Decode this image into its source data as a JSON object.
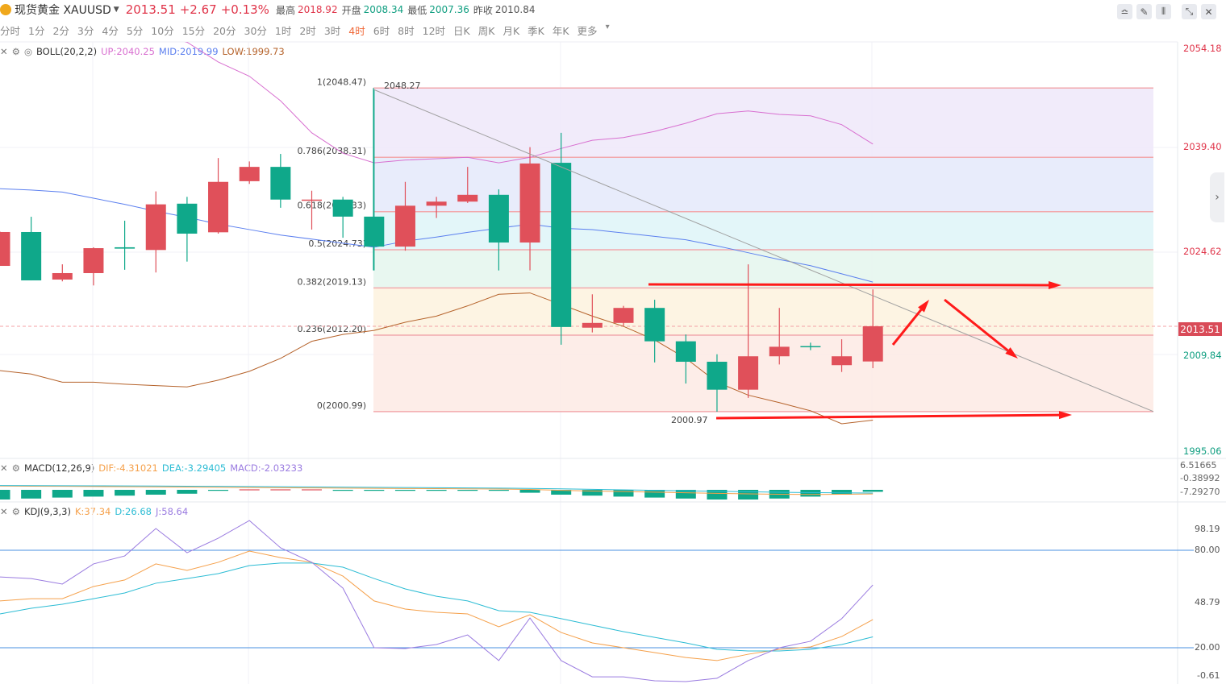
{
  "header": {
    "symbol": "现货黄金 XAUUSD",
    "price": "2013.51",
    "change": "+2.67",
    "change_pct": "+0.13%",
    "high_label": "最高",
    "high": "2018.92",
    "open_label": "开盘",
    "open": "2008.34",
    "low_label": "最低",
    "low": "2007.36",
    "prev_close_label": "昨收",
    "prev_close": "2010.84"
  },
  "toolbar": {
    "icons": [
      "indicator-icon",
      "draw-pencil-icon",
      "candlestick-type-icon",
      "shrink-icon",
      "close-icon"
    ]
  },
  "timeframes": [
    "分时",
    "1分",
    "2分",
    "3分",
    "4分",
    "5分",
    "10分",
    "15分",
    "20分",
    "30分",
    "1时",
    "2时",
    "3时",
    "4时",
    "6时",
    "8时",
    "12时",
    "日K",
    "周K",
    "月K",
    "季K",
    "年K",
    "更多"
  ],
  "active_timeframe": "4时",
  "boll": {
    "name": "BOLL(20,2,2)",
    "up": "UP:2040.25",
    "mid": "MID:2019.99",
    "low": "LOW:1999.73"
  },
  "macd_ind": {
    "name": "MACD(12,26,9)",
    "dif": "DIF:-4.31021",
    "dea": "DEA:-3.29405",
    "macd": "MACD:-2.03233"
  },
  "kdj_ind": {
    "name": "KDJ(9,3,3)",
    "k": "K:37.34",
    "d": "D:26.68",
    "j": "J:58.64"
  },
  "price_axis": [
    "2054.18",
    "2039.40",
    "2024.62",
    "2009.84",
    "1995.06"
  ],
  "current_price_badge": "2013.51",
  "macd_axis": [
    "6.51665",
    "-0.38992",
    "-7.29270"
  ],
  "kdj_axis": [
    "98.19",
    "80.00",
    "48.79",
    "20.00",
    "-0.61"
  ],
  "colors": {
    "up": "#e0505a",
    "down": "#0fa88a",
    "boll_up": "#d86fd0",
    "boll_mid": "#5b7fef",
    "boll_low": "#b5622a",
    "k": "#f5a04a",
    "d": "#2cbcd4",
    "j": "#9a7be0",
    "annotation": "#ff1a1a"
  },
  "chart_data": [
    {
      "type": "candlestick",
      "title": "",
      "ylim": [
        1995.06,
        2054.18
      ],
      "candles": [
        [
          2022.37,
          2027.4,
          2022.37,
          2027.34
        ],
        [
          2027.34,
          2029.58,
          2020.24,
          2020.24
        ],
        [
          2020.36,
          2022.6,
          2020.1,
          2021.31
        ],
        [
          2021.31,
          2025.1,
          2019.5,
          2024.97
        ],
        [
          2025.1,
          2029.0,
          2021.8,
          2024.9
        ],
        [
          2024.7,
          2033.3,
          2021.4,
          2031.4
        ],
        [
          2031.5,
          2032.5,
          2023.0,
          2027.1
        ],
        [
          2027.3,
          2038.2,
          2027.1,
          2034.7
        ],
        [
          2034.8,
          2037.7,
          2034.4,
          2036.9
        ],
        [
          2036.9,
          2038.8,
          2030.9,
          2032.1
        ],
        [
          2032.0,
          2033.4,
          2027.7,
          2032.1
        ],
        [
          2032.1,
          2032.5,
          2026.5,
          2029.6
        ],
        [
          2029.6,
          2048.27,
          2021.7,
          2025.2
        ],
        [
          2025.2,
          2034.7,
          2024.6,
          2031.2
        ],
        [
          2031.2,
          2032.5,
          2029.4,
          2031.8
        ],
        [
          2031.8,
          2036.9,
          2031.6,
          2032.8
        ],
        [
          2032.8,
          2033.6,
          2021.7,
          2025.8
        ],
        [
          2025.8,
          2039.8,
          2021.7,
          2037.4
        ],
        [
          2037.5,
          2041.9,
          2010.8,
          2013.4
        ],
        [
          2013.3,
          2018.2,
          2012.6,
          2014.0
        ],
        [
          2014.0,
          2016.5,
          2013.5,
          2016.2
        ],
        [
          2016.2,
          2017.4,
          2008.2,
          2011.3
        ],
        [
          2011.3,
          2012.3,
          2005.1,
          2008.3
        ],
        [
          2008.3,
          2009.4,
          2000.97,
          2004.2
        ],
        [
          2004.2,
          2022.6,
          2003.0,
          2009.1
        ],
        [
          2009.1,
          2016.2,
          2007.9,
          2010.5
        ],
        [
          2010.6,
          2011.1,
          2010.0,
          2010.5
        ],
        [
          2007.8,
          2011.6,
          2006.8,
          2009.1
        ],
        [
          2008.34,
          2018.92,
          2007.36,
          2013.51
        ]
      ],
      "candle_fields": [
        "open",
        "high",
        "low",
        "close"
      ],
      "boll_up": [
        null,
        null,
        null,
        null,
        null,
        2056.5,
        2055.2,
        2052.3,
        2050.2,
        2046.6,
        2041.9,
        2038.9,
        2037.5,
        2037.9,
        2038.1,
        2038.3,
        2037.5,
        2038.3,
        2039.6,
        2040.8,
        2041.2,
        2042.1,
        2043.3,
        2044.7,
        2045.1,
        2044.6,
        2044.4,
        2043.1,
        2040.25
      ],
      "boll_mid": [
        2033.7,
        2033.5,
        2033.2,
        2032.3,
        2031.4,
        2030.4,
        2029.5,
        2028.5,
        2027.7,
        2026.9,
        2026.3,
        2025.7,
        2025.1,
        2026.0,
        2026.6,
        2027.3,
        2027.9,
        2028.5,
        2027.9,
        2027.7,
        2027.2,
        2026.7,
        2026.2,
        2025.3,
        2024.3,
        2023.3,
        2022.4,
        2021.2,
        2019.99
      ],
      "boll_low": [
        2007.0,
        2006.5,
        2005.3,
        2005.3,
        2005.0,
        2004.8,
        2004.6,
        2005.6,
        2006.9,
        2008.8,
        2011.3,
        2012.3,
        2012.9,
        2014.1,
        2015.0,
        2016.5,
        2018.2,
        2018.4,
        2016.7,
        2015.0,
        2013.5,
        2011.5,
        2008.8,
        2005.3,
        2003.4,
        2002.3,
        2001.1,
        1999.2,
        1999.73
      ],
      "fibonacci": [
        {
          "label": "1(2048.47)",
          "value": 2048.47
        },
        {
          "label": "0.786(2038.31)",
          "value": 2038.31
        },
        {
          "label": "0.618(2030.33)",
          "value": 2030.33
        },
        {
          "label": "0.5(2024.73)",
          "value": 2024.73
        },
        {
          "label": "0.382(2019.13)",
          "value": 2019.13
        },
        {
          "label": "0.236(2012.20)",
          "value": 2012.2
        },
        {
          "label": "0(2000.99)",
          "value": 2000.99
        }
      ],
      "high_marker": "2048.27",
      "low_marker": "2000.97"
    },
    {
      "type": "bar",
      "title": "",
      "macd_hist": [
        -10,
        -9,
        -8,
        -7,
        -6,
        -5,
        -4,
        -1,
        0.5,
        0.5,
        0.5,
        -0.5,
        -0.8,
        -0.8,
        -0.8,
        -0.8,
        -0.8,
        -3,
        -5,
        -6,
        -7,
        -8,
        -9,
        -10,
        -10,
        -9,
        -7,
        -5,
        -2.03
      ],
      "dif": [
        4,
        3.8,
        3.6,
        3.4,
        3.2,
        3.0,
        2.8,
        2.6,
        2.4,
        2.2,
        2.0,
        1.8,
        1.6,
        1.4,
        1.2,
        1.0,
        0.8,
        0.4,
        -0.5,
        -1.2,
        -1.8,
        -2.4,
        -3.0,
        -3.6,
        -4.2,
        -4.6,
        -4.8,
        -4.6,
        -4.31
      ],
      "dea": [
        4.5,
        4.4,
        4.3,
        4.2,
        4.1,
        4.0,
        3.8,
        3.6,
        3.4,
        3.2,
        3.0,
        2.8,
        2.6,
        2.4,
        2.2,
        2.0,
        1.8,
        1.5,
        1.0,
        0.5,
        0,
        -0.5,
        -1.0,
        -1.5,
        -2.0,
        -2.5,
        -2.9,
        -3.1,
        -3.29
      ]
    },
    {
      "type": "line",
      "title": "",
      "ylim": [
        -0.61,
        98.19
      ],
      "reference_lines": [
        80,
        20
      ],
      "k": [
        48.8,
        50.2,
        50.2,
        57.7,
        61.7,
        71.6,
        67.6,
        72.6,
        79.5,
        75.5,
        72.6,
        64.1,
        48.8,
        43.8,
        41.8,
        40.8,
        32.9,
        40.3,
        29.4,
        23,
        20,
        17,
        14,
        12.1,
        16,
        19,
        20.5,
        26.9,
        37.34
      ],
      "d": [
        40.8,
        44.3,
        46.8,
        50.2,
        53.7,
        59.7,
        62.6,
        65.6,
        70.6,
        72.1,
        72.1,
        69.6,
        62.6,
        56.2,
        51.7,
        48.8,
        42.8,
        41.8,
        37.9,
        33.9,
        29.9,
        26.4,
        23,
        19,
        18,
        18,
        19,
        22,
        26.68
      ],
      "j": [
        63.6,
        62.6,
        59.2,
        71.6,
        76.5,
        93.4,
        78.5,
        87.4,
        98.3,
        81.5,
        72.6,
        56.7,
        20,
        19.5,
        22,
        27.9,
        12.1,
        38.3,
        12.1,
        2.1,
        2.1,
        -0.3,
        -0.8,
        1.2,
        12.1,
        20,
        24,
        37.9,
        58.64
      ]
    }
  ]
}
